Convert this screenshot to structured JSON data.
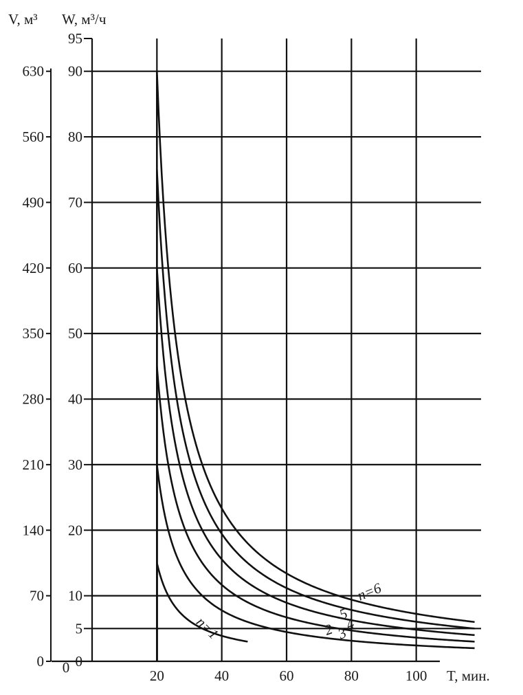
{
  "chart_data": {
    "type": "line",
    "title": "",
    "xlabel": "T, мин.",
    "ylabel_left": "V, м³",
    "ylabel_right": "W, м³/ч",
    "xlim": [
      0,
      120
    ],
    "ylim": [
      0,
      95
    ],
    "x_ticks": [
      "20",
      "40",
      "60",
      "80",
      "100"
    ],
    "x_zero_label": "0",
    "w_ticks": [
      {
        "value": 0,
        "label": "0"
      },
      {
        "value": 5,
        "label": "5"
      },
      {
        "value": 10,
        "label": "10"
      },
      {
        "value": 20,
        "label": "20"
      },
      {
        "value": 30,
        "label": "30"
      },
      {
        "value": 40,
        "label": "40"
      },
      {
        "value": 50,
        "label": "50"
      },
      {
        "value": 60,
        "label": "60"
      },
      {
        "value": 70,
        "label": "70"
      },
      {
        "value": 80,
        "label": "80"
      },
      {
        "value": 90,
        "label": "90"
      },
      {
        "value": 95,
        "label": "95"
      }
    ],
    "v_ticks": [
      {
        "value": 0,
        "label": "0"
      },
      {
        "value": 10,
        "label": "70"
      },
      {
        "value": 20,
        "label": "140"
      },
      {
        "value": 30,
        "label": "210"
      },
      {
        "value": 40,
        "label": "280"
      },
      {
        "value": 50,
        "label": "350"
      },
      {
        "value": 60,
        "label": "420"
      },
      {
        "value": 70,
        "label": "490"
      },
      {
        "value": 80,
        "label": "560"
      },
      {
        "value": 90,
        "label": "630"
      }
    ],
    "grid_x": [
      20,
      40,
      60,
      80,
      100
    ],
    "grid_y": [
      5,
      10,
      20,
      30,
      40,
      50,
      60,
      70,
      80,
      90
    ],
    "series": [
      {
        "label": "n=1",
        "k": 105,
        "x": [
          20,
          25,
          30,
          35,
          40,
          45,
          48
        ]
      },
      {
        "label": "2",
        "k": 210,
        "x": [
          20,
          30,
          40,
          50,
          60,
          70,
          80,
          90,
          100,
          118
        ]
      },
      {
        "label": "3",
        "k": 315,
        "x": [
          20,
          30,
          40,
          50,
          60,
          70,
          80,
          90,
          100,
          110,
          118
        ]
      },
      {
        "label": "4",
        "k": 420,
        "x": [
          20,
          30,
          40,
          50,
          60,
          70,
          80,
          90,
          100,
          110,
          118
        ]
      },
      {
        "label": "5",
        "k": 525,
        "x": [
          20,
          30,
          40,
          50,
          60,
          70,
          80,
          90,
          100,
          110,
          118
        ]
      },
      {
        "label": "n=6",
        "k": 630,
        "x": [
          20,
          30,
          40,
          50,
          60,
          70,
          80,
          90,
          100,
          110,
          118
        ]
      }
    ],
    "curve_formula": "W = k / (T - 13) for T ≥ 20, vertical drop to W = 0 at T = 20"
  }
}
